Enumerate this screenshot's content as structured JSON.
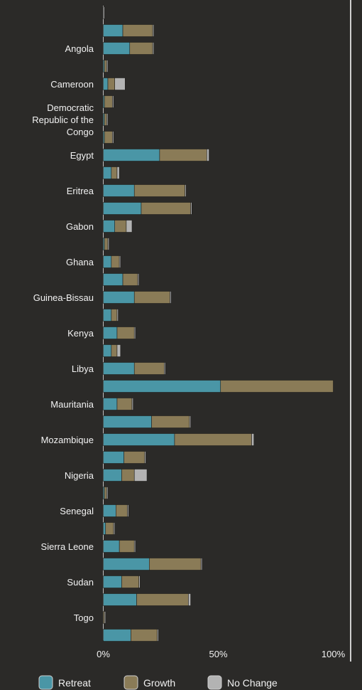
{
  "chart_data": {
    "type": "bar",
    "orientation": "horizontal",
    "stacked": true,
    "row_labels": [
      "",
      "",
      "Angola",
      "",
      "Cameroon",
      "",
      "Democratic\nRepublic of the\nCongo",
      "",
      "Egypt",
      "",
      "Eritrea",
      "",
      "Gabon",
      "",
      "Ghana",
      "",
      "Guinea-Bissau",
      "",
      "Kenya",
      "",
      "Libya",
      "",
      "Mauritania",
      "",
      "Mozambique",
      "",
      "Nigeria",
      "",
      "Senegal",
      "",
      "Sierra Leone",
      "",
      "Sudan",
      "",
      "Togo",
      ""
    ],
    "series": [
      {
        "name": "Retreat",
        "values": [
          0,
          8.5,
          11.5,
          0.5,
          2,
          0.5,
          0.5,
          0.5,
          24.5,
          3.5,
          13.5,
          16.5,
          5,
          0.5,
          3.5,
          8.5,
          13.5,
          3.5,
          6,
          3.5,
          13.5,
          51,
          6,
          21,
          31,
          9,
          8,
          0.5,
          5.5,
          1,
          7,
          20,
          8,
          14.5,
          0,
          12
        ]
      },
      {
        "name": "Growth",
        "values": [
          0,
          13,
          10,
          1,
          3,
          3.5,
          1,
          3.5,
          20.5,
          2.5,
          22,
          21.5,
          5,
          1.5,
          3.5,
          6.5,
          15.5,
          2.5,
          7.5,
          2.5,
          13,
          49,
          6.5,
          16.5,
          33.5,
          9,
          5.5,
          1,
          5,
          3.5,
          6.5,
          22.5,
          7.5,
          22.5,
          0.5,
          11.5
        ]
      },
      {
        "name": "No Change",
        "values": [
          0.5,
          0.5,
          0.5,
          0.5,
          4.5,
          0.5,
          0.5,
          0.5,
          1,
          1,
          0.5,
          0.5,
          2.5,
          0.5,
          0.5,
          0.5,
          0.5,
          0.5,
          0.5,
          1.5,
          0.5,
          0,
          0.5,
          0.5,
          1,
          0.5,
          5.5,
          0.5,
          0.5,
          0.5,
          0.5,
          0.5,
          0.5,
          1,
          0.5,
          0.5
        ]
      }
    ],
    "xlim": [
      0,
      100
    ],
    "x_ticks": [
      "0%",
      "50%",
      "100%"
    ],
    "x_tick_values": [
      0,
      50,
      100
    ],
    "grid": false,
    "legend_position": "bottom",
    "colors": {
      "background": "#2b2a28",
      "Retreat": "#4a96a6",
      "Growth": "#8a7b57",
      "No Change": "#b3b3b3",
      "axis": "#bdbdbd",
      "text": "#f2f2f2"
    }
  }
}
